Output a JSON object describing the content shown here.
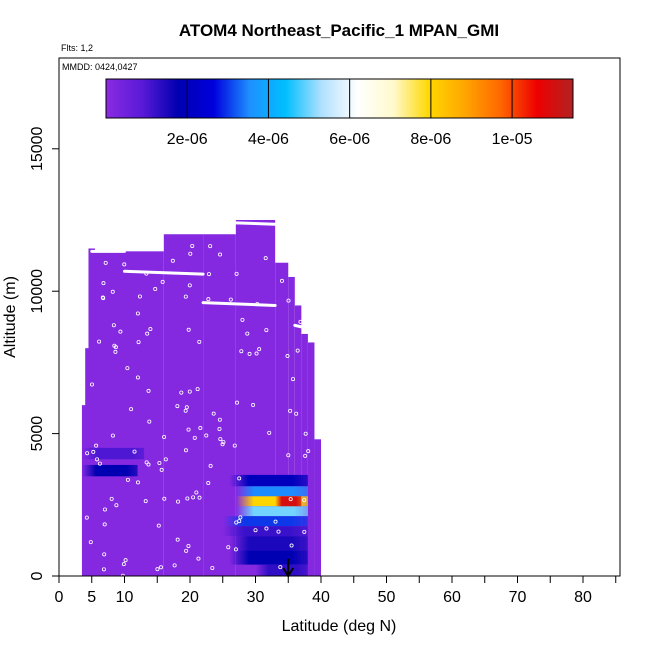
{
  "chart_data": {
    "type": "heatmap",
    "title": "ATOM4 Northeast_Pacific_1 MPAN_GMI",
    "flights_note": "Flts: 1,2",
    "date_note": "MMDD: 0424,0427",
    "xlabel": "Latitude (deg N)",
    "ylabel": "Altitude (m)",
    "xlim": [
      0,
      85
    ],
    "ylim": [
      0,
      17500
    ],
    "x_ticks": [
      0,
      5,
      10,
      20,
      30,
      40,
      50,
      60,
      70,
      80
    ],
    "x_tick_labels": [
      "0",
      "5",
      "10",
      "20",
      "30",
      "40",
      "50",
      "60",
      "70",
      "80"
    ],
    "y_ticks": [
      0,
      5000,
      10000,
      15000
    ],
    "y_tick_labels": [
      "0",
      "5000",
      "10000",
      "15000"
    ],
    "colorbar": {
      "range": [
        0,
        1.15e-05
      ],
      "tick_values": [
        2e-06,
        4e-06,
        6e-06,
        8e-06,
        1e-05
      ],
      "tick_labels": [
        "2e-06",
        "4e-06",
        "6e-06",
        "8e-06",
        "1e-05"
      ],
      "colors": [
        "#8a2be2",
        "#5a1ad8",
        "#0000b0",
        "#0000dd",
        "#1e90ff",
        "#00bfff",
        "#b0e0ff",
        "#ffffff",
        "#fffacd",
        "#ffd700",
        "#ffa500",
        "#ff6600",
        "#ee0000",
        "#b22222"
      ]
    },
    "background_value": 1e-07,
    "domain_columns": [
      {
        "x": [
          3.5,
          4.5
        ],
        "y": [
          0,
          6000
        ]
      },
      {
        "x": [
          4,
          5
        ],
        "y": [
          0,
          8000
        ]
      },
      {
        "x": [
          4.5,
          5.5
        ],
        "y": [
          0,
          11500
        ]
      },
      {
        "x": [
          5,
          16
        ],
        "y": [
          0,
          11400
        ]
      },
      {
        "x": [
          16,
          22
        ],
        "y": [
          0,
          12000
        ]
      },
      {
        "x": [
          22,
          27
        ],
        "y": [
          0,
          12000
        ]
      },
      {
        "x": [
          27,
          33
        ],
        "y": [
          0,
          12500
        ]
      },
      {
        "x": [
          33,
          35
        ],
        "y": [
          0,
          11000
        ]
      },
      {
        "x": [
          35,
          36
        ],
        "y": [
          0,
          10500
        ]
      },
      {
        "x": [
          36,
          37
        ],
        "y": [
          0,
          9500
        ]
      },
      {
        "x": [
          37,
          38
        ],
        "y": [
          0,
          8500
        ]
      },
      {
        "x": [
          38,
          39
        ],
        "y": [
          0,
          8200
        ]
      },
      {
        "x": [
          39,
          40
        ],
        "y": [
          0,
          4800
        ]
      }
    ],
    "anomalies": [
      {
        "x": [
          3.5,
          13
        ],
        "y": [
          4100,
          4500
        ],
        "value": 1e-06
      },
      {
        "x": [
          3.5,
          12
        ],
        "y": [
          3500,
          3900
        ],
        "value": 1.8e-06
      },
      {
        "x": [
          26,
          38
        ],
        "y": [
          3150,
          3550
        ],
        "value": 2e-06
      },
      {
        "x": [
          27,
          38
        ],
        "y": [
          2800,
          3150
        ],
        "value": 3.5e-06
      },
      {
        "x": [
          27,
          38
        ],
        "y": [
          2450,
          2800
        ],
        "value": 8e-06
      },
      {
        "x": [
          27,
          38
        ],
        "y": [
          2100,
          2450
        ],
        "value": 5e-06
      },
      {
        "x": [
          25,
          38
        ],
        "y": [
          1750,
          2100
        ],
        "value": 3e-06
      },
      {
        "x": [
          25,
          38
        ],
        "y": [
          1400,
          1750
        ],
        "value": 1.2e-06
      },
      {
        "x": [
          26,
          38
        ],
        "y": [
          900,
          1400
        ],
        "value": 1.5e-06
      },
      {
        "x": [
          26,
          38
        ],
        "y": [
          400,
          900
        ],
        "value": 1.8e-06
      },
      {
        "x": [
          30,
          38
        ],
        "y": [
          0,
          400
        ],
        "value": 1.3e-06
      }
    ],
    "hotspot": {
      "x": [
        33,
        37
      ],
      "y": [
        2450,
        2800
      ],
      "value": 1.1e-05
    },
    "flight_track_segments": [
      {
        "x": [
          5,
          10
        ],
        "y": [
          11400,
          11400
        ]
      },
      {
        "x": [
          10,
          22
        ],
        "y": [
          10700,
          10600
        ]
      },
      {
        "x": [
          22,
          33
        ],
        "y": [
          9600,
          9500
        ]
      },
      {
        "x": [
          27,
          33
        ],
        "y": [
          12400,
          12350
        ]
      },
      {
        "x": [
          36,
          38
        ],
        "y": [
          8800,
          8700
        ]
      }
    ],
    "arrow": {
      "x": 35,
      "y_from": 600,
      "y_to": 0
    }
  }
}
